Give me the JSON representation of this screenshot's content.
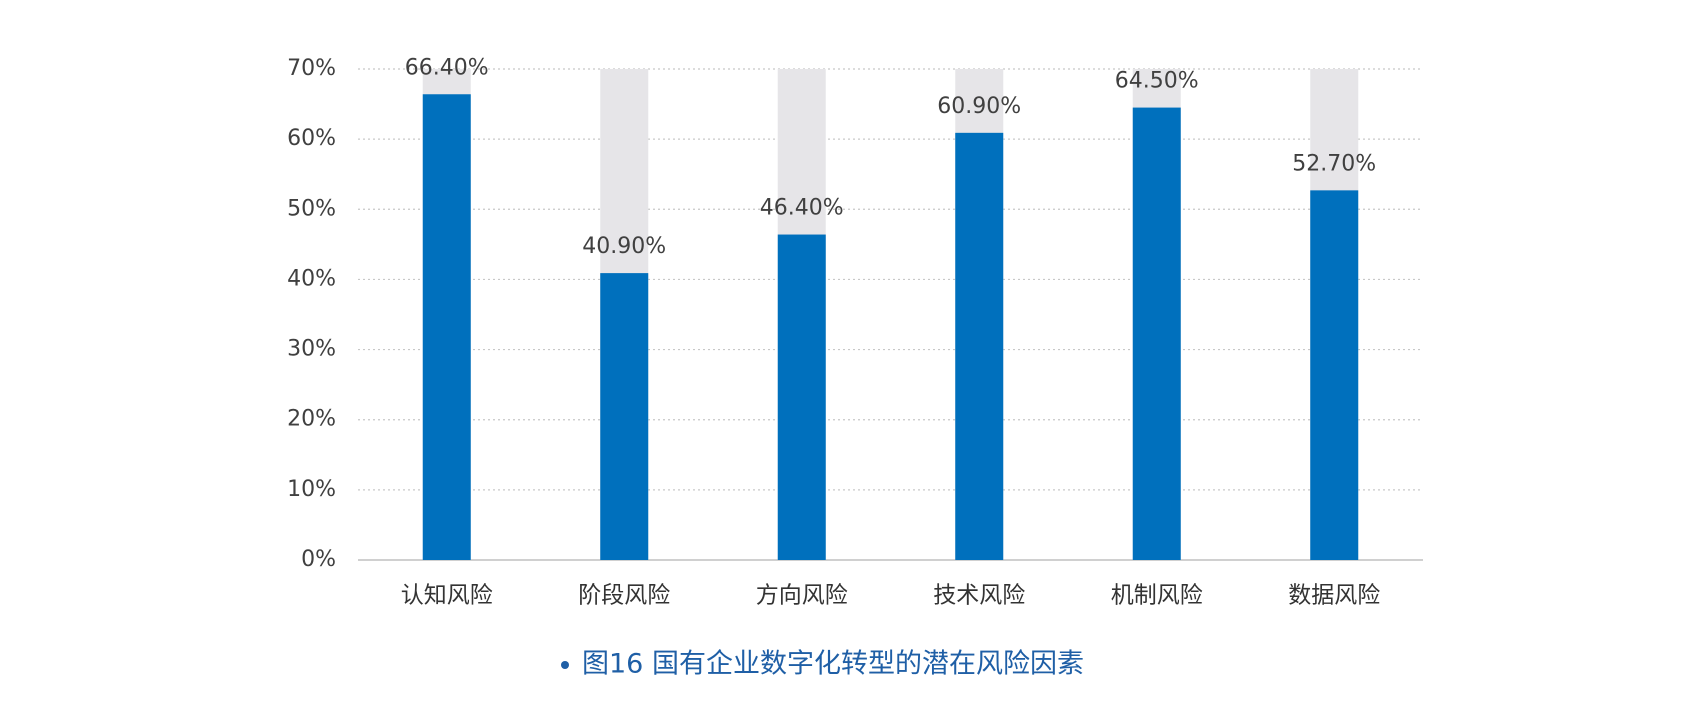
{
  "chart_data": {
    "type": "bar",
    "title": "图16  国有企业数字化转型的潜在风险因素",
    "categories": [
      "认知风险",
      "阶段风险",
      "方向风险",
      "技术风险",
      "机制风险",
      "数据风险"
    ],
    "values": [
      66.4,
      40.9,
      46.4,
      60.9,
      64.5,
      52.7
    ],
    "value_labels": [
      "66.40%",
      "40.90%",
      "46.40%",
      "60.90%",
      "64.50%",
      "52.70%"
    ],
    "color": "#0070bd",
    "ylim": [
      0,
      70
    ],
    "yticks": [
      {
        "value": 0,
        "label": "0%"
      },
      {
        "value": 10,
        "label": "10%"
      },
      {
        "value": 20,
        "label": "20%"
      },
      {
        "value": 30,
        "label": "30%"
      },
      {
        "value": 40,
        "label": "40%"
      },
      {
        "value": 50,
        "label": "50%"
      },
      {
        "value": 60,
        "label": "60%"
      },
      {
        "value": 70,
        "label": "70%"
      }
    ],
    "grid": true
  }
}
